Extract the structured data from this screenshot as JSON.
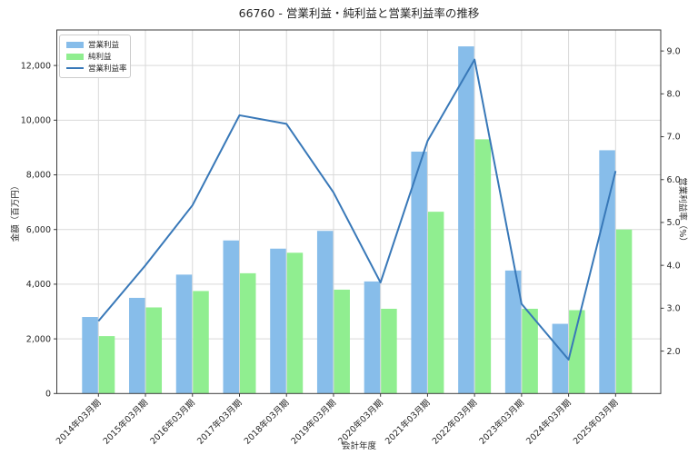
{
  "chart_data": {
    "type": "bar+line",
    "title": "66760 - 営業利益・純利益と営業利益率の推移",
    "xlabel": "会計年度",
    "ylabel_left": "金額（百万円）",
    "ylabel_right": "営業利益率（%）",
    "categories": [
      "2014年03月期",
      "2015年03月期",
      "2016年03月期",
      "2017年03月期",
      "2018年03月期",
      "2019年03月期",
      "2020年03月期",
      "2021年03月期",
      "2022年03月期",
      "2023年03月期",
      "2024年03月期",
      "2025年03月期"
    ],
    "series": [
      {
        "name": "営業利益",
        "type": "bar",
        "axis": "left",
        "color": "#87BDEA",
        "values": [
          2800,
          3500,
          4350,
          5600,
          5300,
          5950,
          4100,
          8850,
          12700,
          4500,
          2550,
          8900
        ]
      },
      {
        "name": "純利益",
        "type": "bar",
        "axis": "left",
        "color": "#90EE90",
        "values": [
          2100,
          3150,
          3750,
          4400,
          5150,
          3800,
          3100,
          6650,
          9300,
          3100,
          3050,
          6000
        ]
      },
      {
        "name": "営業利益率",
        "type": "line",
        "axis": "right",
        "color": "#3878B8",
        "values": [
          2.7,
          4.0,
          5.4,
          7.5,
          7.3,
          5.7,
          3.6,
          6.9,
          8.8,
          3.1,
          1.8,
          6.2
        ]
      }
    ],
    "left_axis": {
      "min": 0,
      "max": 13300,
      "ticks": [
        0,
        2000,
        4000,
        6000,
        8000,
        10000,
        12000
      ],
      "tick_labels": [
        "0",
        "2,000",
        "4,000",
        "6,000",
        "8,000",
        "10,000",
        "12,000"
      ]
    },
    "right_axis": {
      "min": 1.01,
      "max": 9.49,
      "ticks": [
        2,
        3,
        4,
        5,
        6,
        7,
        8,
        9
      ],
      "tick_labels": [
        "2.0",
        "3.0",
        "4.0",
        "5.0",
        "6.0",
        "7.0",
        "8.0",
        "9.0"
      ]
    },
    "grid": true,
    "legend_position": "upper-left",
    "colors": {
      "grid": "#d9d9d9",
      "spine": "#3c3c3c",
      "text": "#262626"
    }
  }
}
